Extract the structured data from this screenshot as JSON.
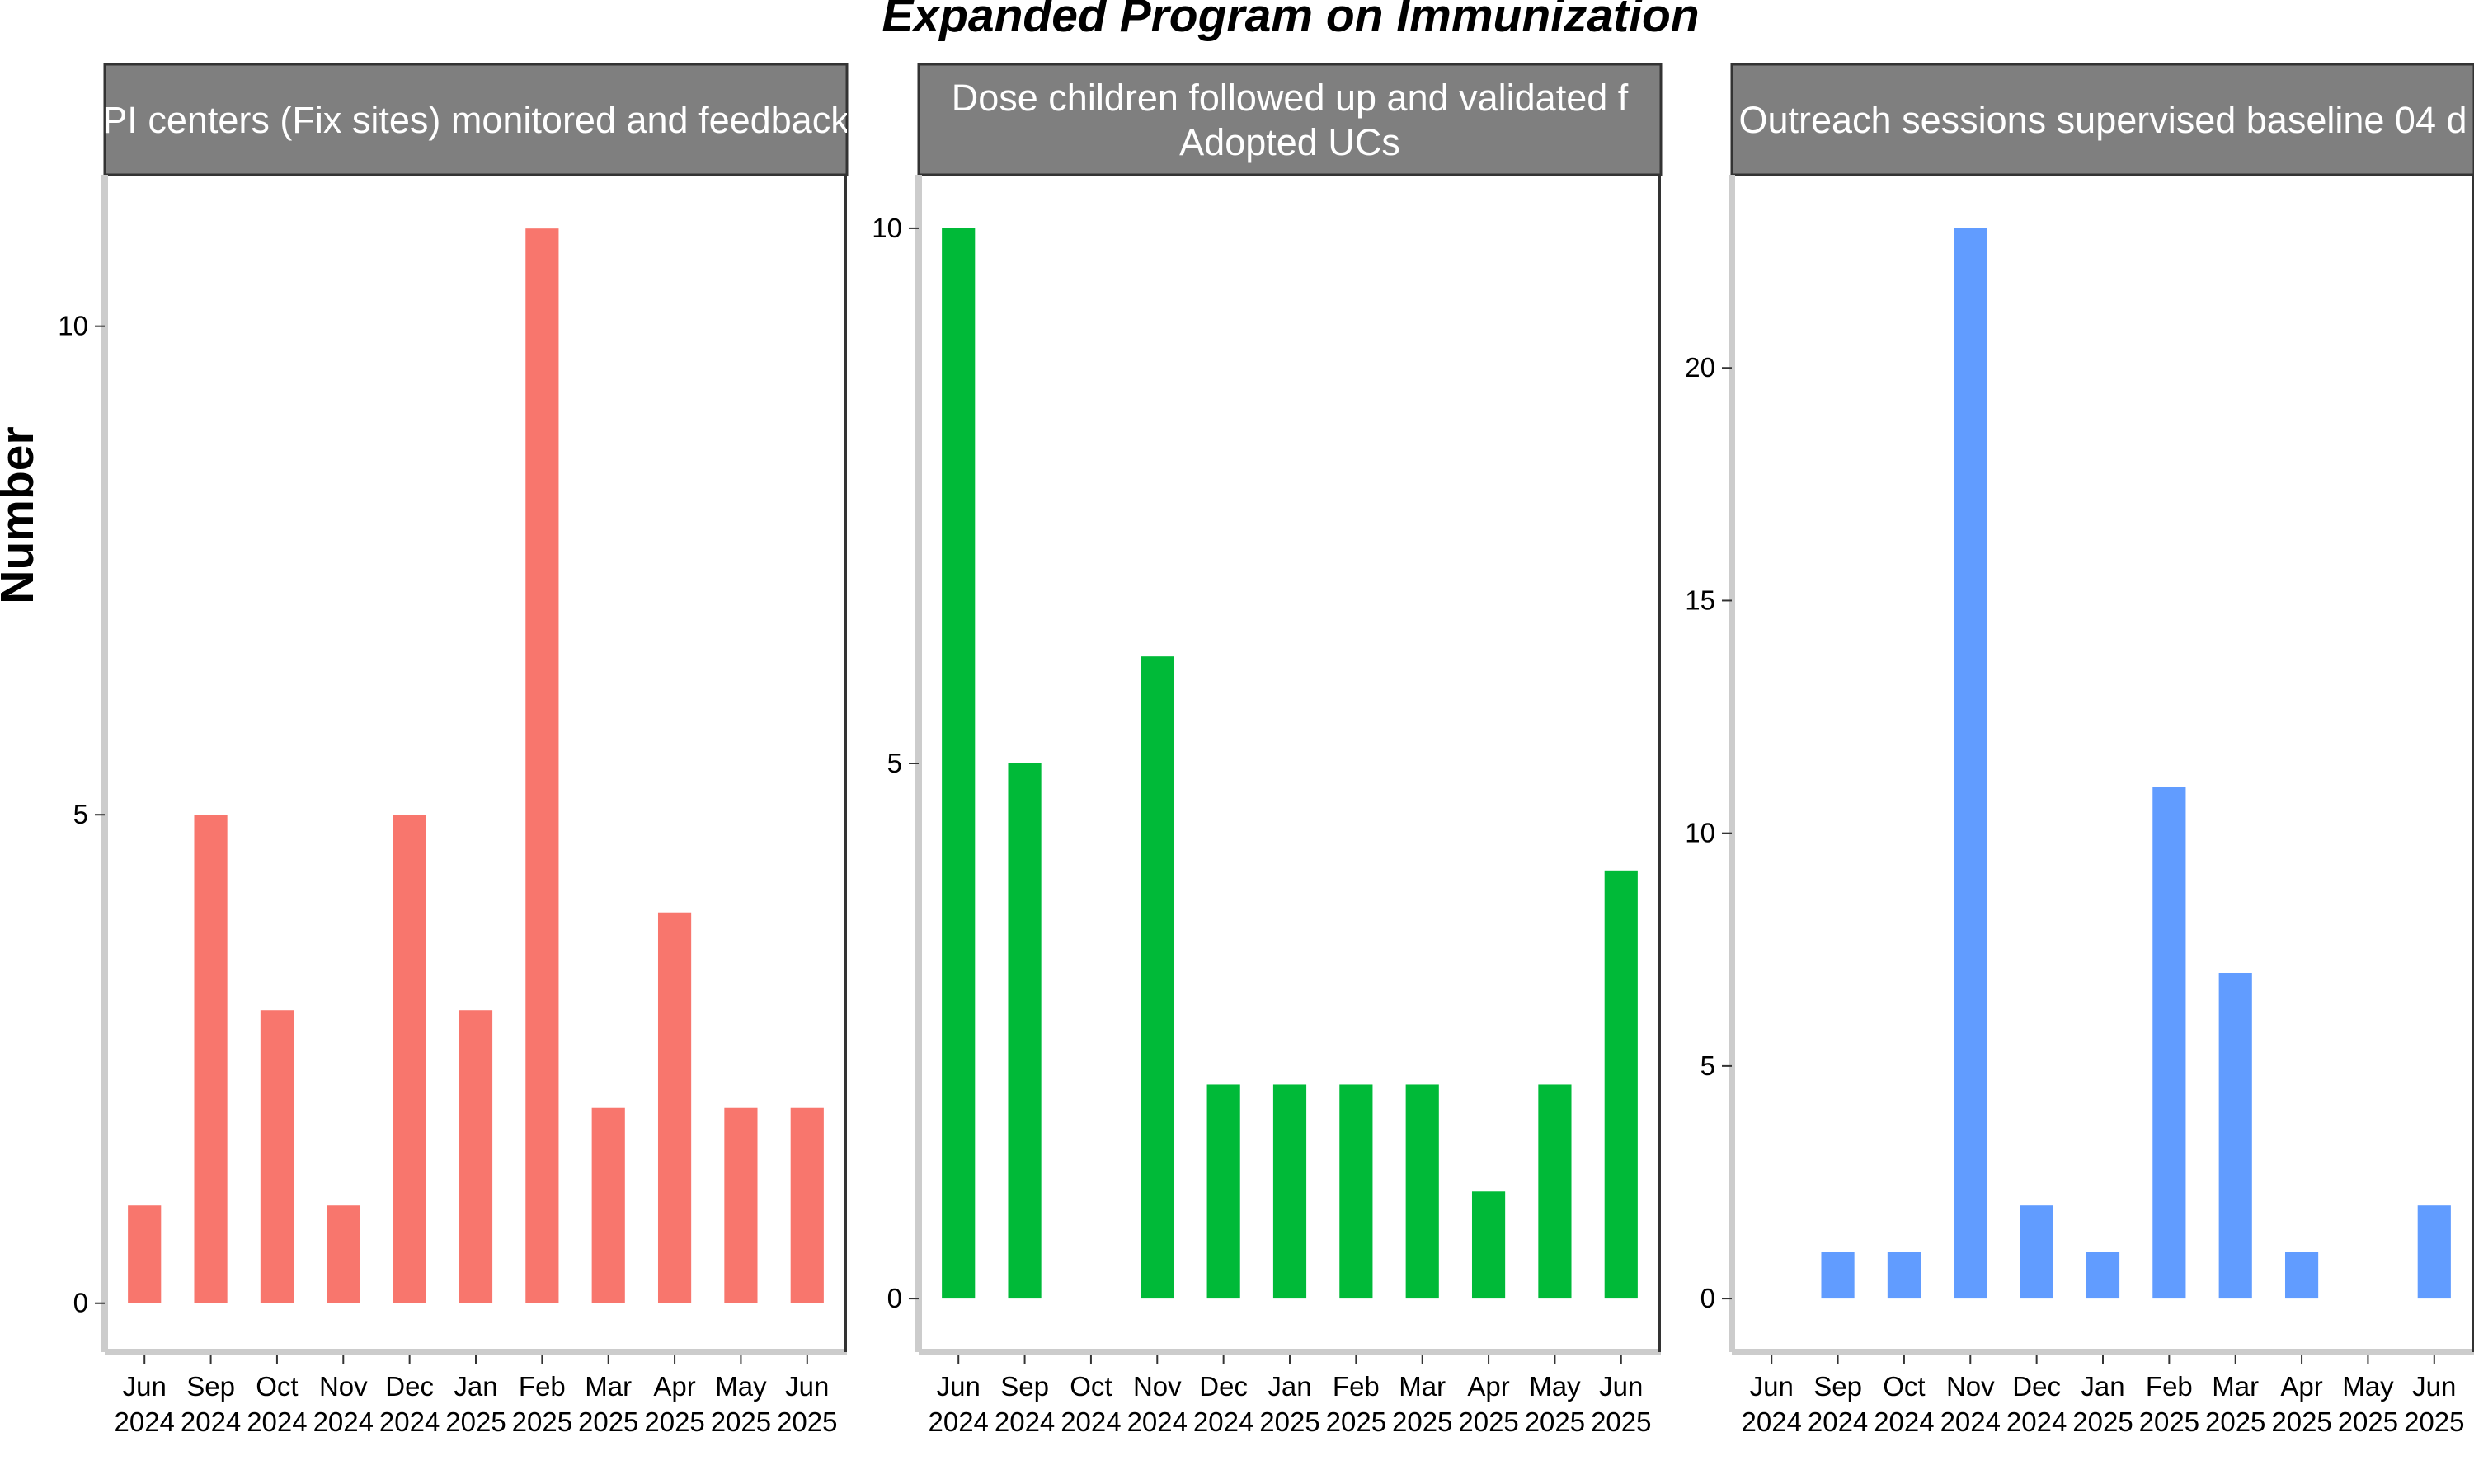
{
  "chart_data": {
    "type": "bar",
    "title": "Expanded Program on Immunization",
    "ylabel": "Number",
    "xlabel": "",
    "grid": false,
    "categories": [
      [
        "Jun",
        "2024"
      ],
      [
        "Sep",
        "2024"
      ],
      [
        "Oct",
        "2024"
      ],
      [
        "Nov",
        "2024"
      ],
      [
        "Dec",
        "2024"
      ],
      [
        "Jan",
        "2025"
      ],
      [
        "Feb",
        "2025"
      ],
      [
        "Mar",
        "2025"
      ],
      [
        "Apr",
        "2025"
      ],
      [
        "May",
        "2025"
      ],
      [
        "Jun",
        "2025"
      ]
    ],
    "panels": [
      {
        "strip_lines": [
          "PI centers (Fix sites) monitored and feedback"
        ],
        "color": "#F8766D",
        "values": [
          1,
          5,
          3,
          1,
          5,
          3,
          11,
          2,
          4,
          2,
          2
        ],
        "ylim": [
          -0.5,
          11.55
        ],
        "yticks": [
          0,
          5,
          10
        ]
      },
      {
        "strip_lines": [
          "Dose children followed up and validated f",
          "Adopted UCs"
        ],
        "color": "#00BA38",
        "values": [
          10,
          5,
          0,
          6,
          2,
          2,
          2,
          2,
          1,
          2,
          4
        ],
        "ylim": [
          -0.5,
          10.5
        ],
        "yticks": [
          0,
          5,
          10
        ]
      },
      {
        "strip_lines": [
          "Outreach sessions supervised baseline 04 d"
        ],
        "color": "#619CFF",
        "values": [
          0,
          1,
          1,
          23,
          2,
          1,
          11,
          7,
          1,
          0,
          2
        ],
        "ylim": [
          -1.15,
          24.15
        ],
        "yticks": [
          0,
          5,
          10,
          15,
          20
        ]
      }
    ]
  }
}
